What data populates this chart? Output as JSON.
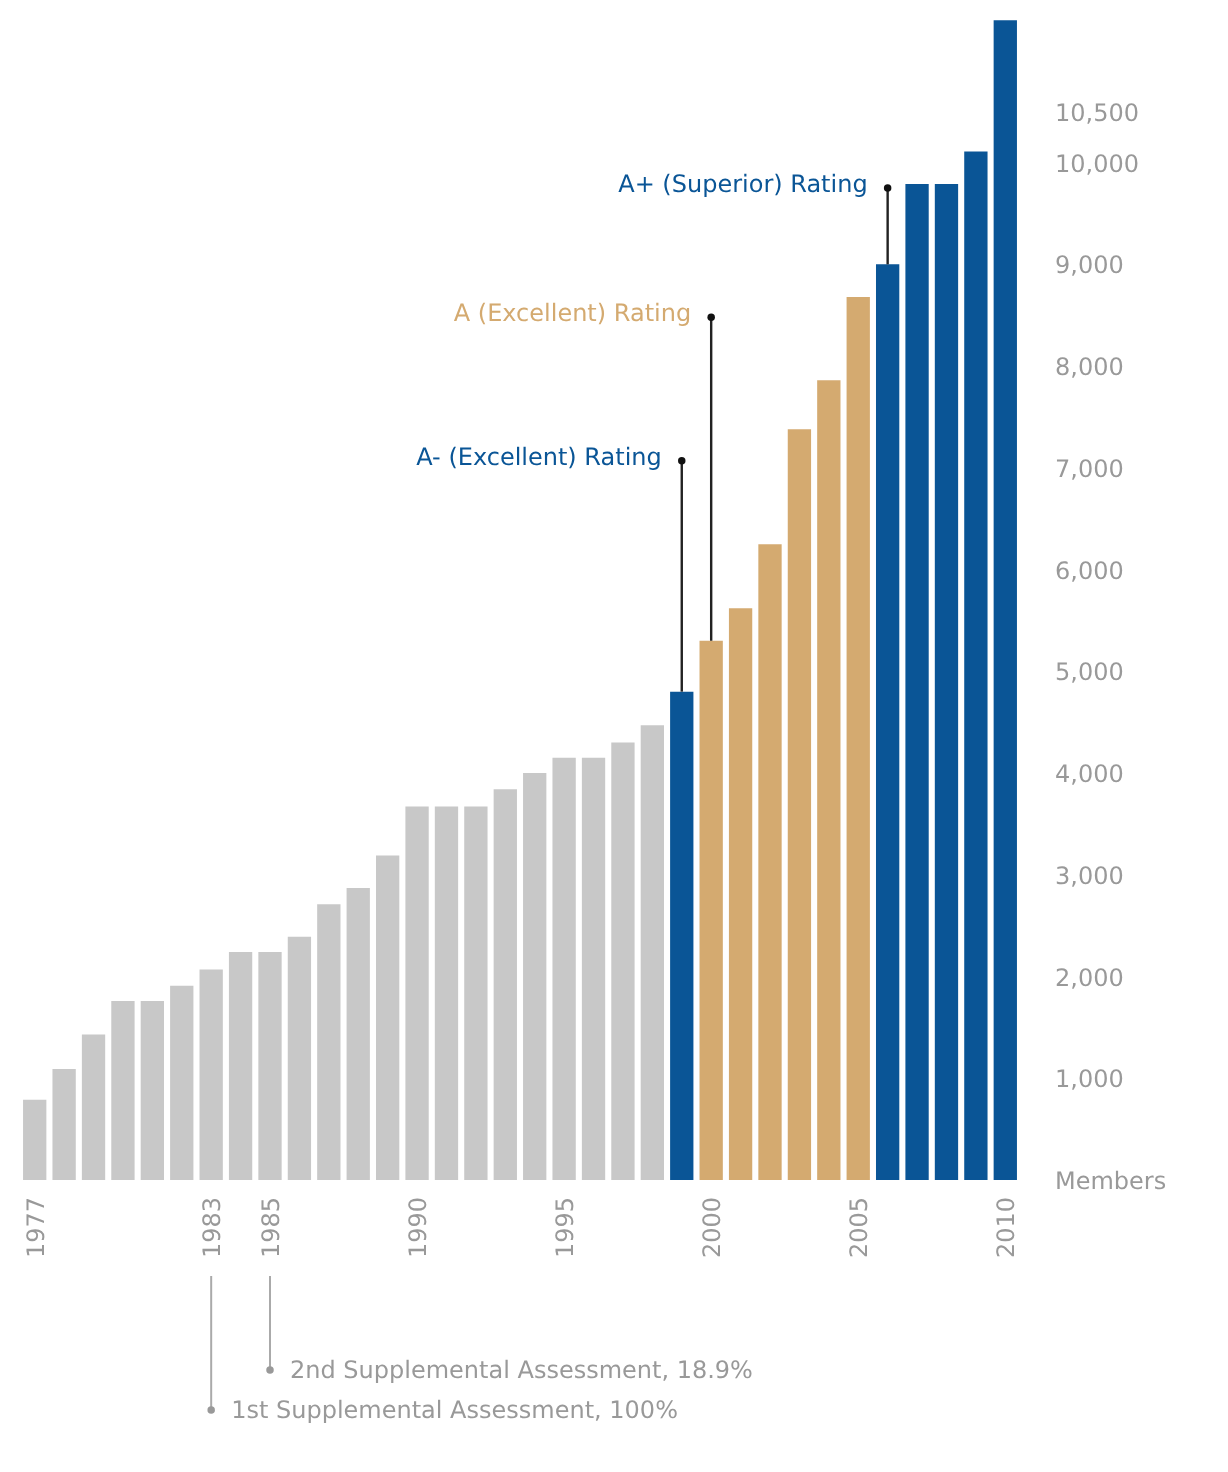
{
  "chart_data": {
    "type": "bar",
    "x": [
      1977,
      1978,
      1979,
      1980,
      1981,
      1982,
      1983,
      1984,
      1985,
      1986,
      1987,
      1988,
      1989,
      1990,
      1991,
      1992,
      1993,
      1994,
      1995,
      1996,
      1997,
      1998,
      1999,
      2000,
      2001,
      2002,
      2003,
      2004,
      2005,
      2006,
      2007,
      2008,
      2009,
      2010
    ],
    "values": [
      790,
      1090,
      1430,
      1760,
      1760,
      1910,
      2070,
      2240,
      2240,
      2390,
      2710,
      2870,
      3190,
      3670,
      3670,
      3670,
      3840,
      4000,
      4150,
      4150,
      4300,
      4470,
      4800,
      5300,
      5620,
      6250,
      7380,
      7860,
      8680,
      9000,
      9790,
      9790,
      10110,
      11400
    ],
    "colors": [
      "#c8c8c8",
      "#c8c8c8",
      "#c8c8c8",
      "#c8c8c8",
      "#c8c8c8",
      "#c8c8c8",
      "#c8c8c8",
      "#c8c8c8",
      "#c8c8c8",
      "#c8c8c8",
      "#c8c8c8",
      "#c8c8c8",
      "#c8c8c8",
      "#c8c8c8",
      "#c8c8c8",
      "#c8c8c8",
      "#c8c8c8",
      "#c8c8c8",
      "#c8c8c8",
      "#c8c8c8",
      "#c8c8c8",
      "#c8c8c8",
      "#0a5596",
      "#d4aa70",
      "#d4aa70",
      "#d4aa70",
      "#d4aa70",
      "#d4aa70",
      "#d4aa70",
      "#0a5596",
      "#0a5596",
      "#0a5596",
      "#0a5596",
      "#0a5596"
    ],
    "xlim": [
      1976.5,
      2010.5
    ],
    "xticks": [
      1977,
      1983,
      1985,
      1990,
      1995,
      2000,
      2005,
      2010
    ],
    "ylim": [
      0,
      11500
    ],
    "yticks": [
      {
        "value": 0,
        "label": "Members"
      },
      {
        "value": 1000,
        "label": "1,000"
      },
      {
        "value": 2000,
        "label": "2,000"
      },
      {
        "value": 3000,
        "label": "3,000"
      },
      {
        "value": 4000,
        "label": "4,000"
      },
      {
        "value": 5000,
        "label": "5,000"
      },
      {
        "value": 6000,
        "label": "6,000"
      },
      {
        "value": 7000,
        "label": "7,000"
      },
      {
        "value": 8000,
        "label": "8,000"
      },
      {
        "value": 9000,
        "label": "9,000"
      },
      {
        "value": 10000,
        "label": "10,000"
      },
      {
        "value": 10500,
        "label": "10,500"
      }
    ],
    "grid": false,
    "annotations": [
      {
        "text": "A- (Excellent) Rating",
        "x": 1999,
        "y": 7070
      },
      {
        "text": "A (Excellent) Rating",
        "x": 2000,
        "y": 8480
      },
      {
        "text": "A+ (Superior) Rating",
        "x": 2006,
        "y": 9750
      },
      "1st Supplemental Assessment, 100%",
      "2nd Supplemental Assessment, 18.9%"
    ]
  }
}
